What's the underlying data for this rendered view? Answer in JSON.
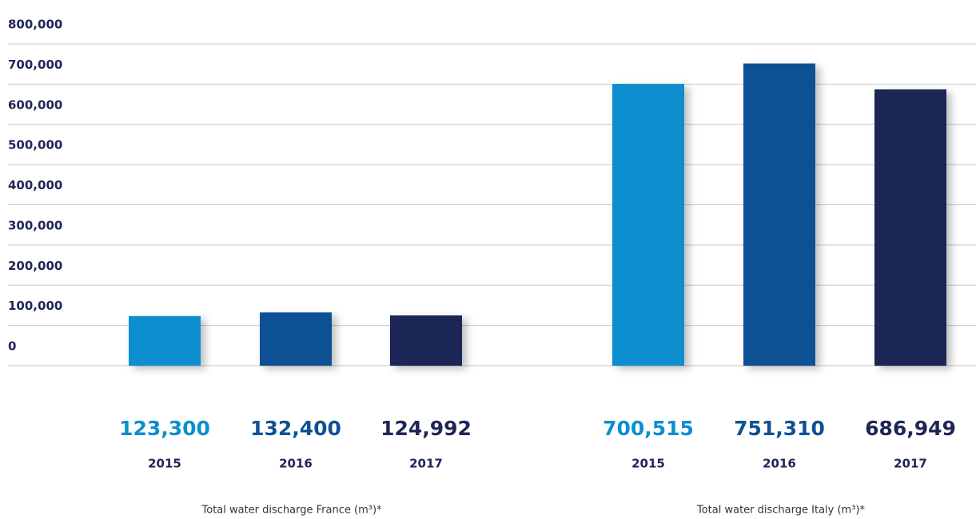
{
  "chart_data": {
    "type": "bar",
    "ylim": [
      0,
      800000
    ],
    "yticks": [
      0,
      {
        "value": 100000,
        "label": "100,000"
      },
      {
        "value": 200000,
        "label": "200,000"
      },
      {
        "value": 300000,
        "label": "300,000"
      },
      {
        "value": 400000,
        "label": "400,000"
      },
      {
        "value": 500000,
        "label": "500,000"
      },
      {
        "value": 600000,
        "label": "600,000"
      },
      {
        "value": 700000,
        "label": "700,000"
      },
      {
        "value": 800000,
        "label": "800,000"
      }
    ],
    "grid": true,
    "groups": [
      {
        "xlabel": "Total water discharge France (m³)*",
        "categories": [
          "2015",
          "2016",
          "2017"
        ],
        "values": [
          123300,
          132400,
          124992
        ],
        "value_labels": [
          "123,300",
          "132,400",
          "124,992"
        ],
        "colors": [
          "#0a8fcf",
          "#0c5194",
          "#1f2657"
        ]
      },
      {
        "xlabel": "Total water discharge Italy (m³)*",
        "categories": [
          "2015",
          "2016",
          "2017"
        ],
        "values": [
          700515,
          751310,
          686949
        ],
        "value_labels": [
          "700,515",
          "751,310",
          "686,949"
        ],
        "colors": [
          "#0a8fcf",
          "#0c5194",
          "#1f2657"
        ]
      }
    ]
  }
}
